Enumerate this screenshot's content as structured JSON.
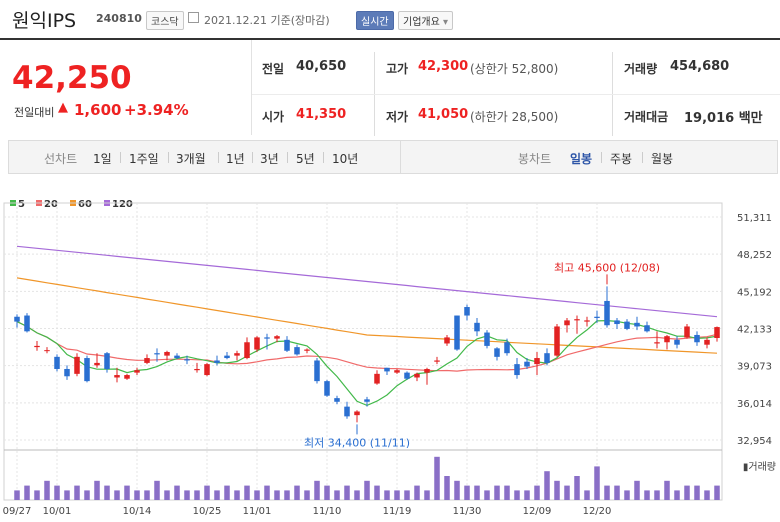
{
  "header": {
    "title": "원익IPS",
    "code": "240810",
    "market": "코스닥",
    "date": "2021.12.21 기준(장마감)",
    "realtime_button": "실시간",
    "company_info_button": "기업개요",
    "company_info_chevron": "▾"
  },
  "price": {
    "current": "42,250",
    "change_label": "전일대비",
    "change_arrow": "▲",
    "change_value": "1,600",
    "change_pct": "+3.94%"
  },
  "quote": {
    "prev_label": "전일",
    "prev_value": "40,650",
    "high_label": "고가",
    "high_value": "42,300",
    "upper_limit": "(상한가 52,800)",
    "volume_label": "거래량",
    "volume_value": "454,680",
    "open_label": "시가",
    "open_value": "41,350",
    "low_label": "저가",
    "low_value": "41,050",
    "lower_limit": "(하한가 28,500)",
    "amount_label": "거래대금",
    "amount_value": "19,016 백만"
  },
  "period_bar": {
    "line_label": "선차트",
    "line_periods": [
      "1일",
      "1주일",
      "3개월",
      "1년",
      "3년",
      "5년",
      "10년"
    ],
    "candle_label": "봉차트",
    "candle_periods": [
      "일봉",
      "주봉",
      "월봉"
    ],
    "candle_selected": "일봉"
  },
  "colors": {
    "up": "#e22222",
    "down": "#2a6fd1",
    "ma5": "#42b94a",
    "ma20": "#f06a6a",
    "ma60": "#f0962a",
    "ma120": "#a56ad8",
    "volume": "#8a6fc7"
  },
  "chart_data": {
    "type": "candlestick",
    "legend": [
      {
        "name": "5",
        "color": "#42b94a"
      },
      {
        "name": "20",
        "color": "#f06a6a"
      },
      {
        "name": "60",
        "color": "#f0962a"
      },
      {
        "name": "120",
        "color": "#a56ad8"
      }
    ],
    "y_ticks": [
      "51,311",
      "48,252",
      "45,192",
      "42,133",
      "39,073",
      "36,014",
      "32,954"
    ],
    "ylim": [
      32954,
      51311
    ],
    "x_labels": [
      "09/27",
      "10/01",
      "10/14",
      "10/25",
      "11/01",
      "11/10",
      "11/19",
      "11/30",
      "12/09",
      "12/20"
    ],
    "x_label_index": [
      0,
      4,
      12,
      19,
      24,
      31,
      38,
      45,
      52,
      58
    ],
    "annotation_high": "최고 45,600 (12/08)",
    "annotation_low": "최저 34,400 (11/11)",
    "volume_label": "거래량",
    "candles": [
      [
        43100,
        43300,
        42200,
        42700
      ],
      [
        43200,
        43400,
        41800,
        41900
      ],
      [
        40600,
        41100,
        40300,
        40700
      ],
      [
        40300,
        40600,
        40100,
        40350
      ],
      [
        39800,
        40000,
        38600,
        38800
      ],
      [
        38800,
        39100,
        37900,
        38200
      ],
      [
        38400,
        40100,
        38200,
        39800
      ],
      [
        39700,
        39900,
        37700,
        37800
      ],
      [
        39100,
        40100,
        38900,
        39300
      ],
      [
        40100,
        40200,
        38500,
        38800
      ],
      [
        38100,
        38900,
        37700,
        38300
      ],
      [
        38000,
        38400,
        37900,
        38300
      ],
      [
        38500,
        38900,
        38300,
        38700
      ],
      [
        39300,
        40000,
        39200,
        39700
      ],
      [
        40100,
        40500,
        39400,
        40000
      ],
      [
        39900,
        40300,
        39500,
        40200
      ],
      [
        39900,
        40100,
        39600,
        39700
      ],
      [
        39600,
        39900,
        39200,
        39500
      ],
      [
        38700,
        39300,
        38500,
        38800
      ],
      [
        38300,
        39300,
        38200,
        39200
      ],
      [
        39500,
        39900,
        39100,
        39300
      ],
      [
        39900,
        40200,
        39600,
        39700
      ],
      [
        39900,
        40300,
        39500,
        40100
      ],
      [
        39700,
        41400,
        39600,
        41000
      ],
      [
        40400,
        41500,
        40200,
        41400
      ],
      [
        41400,
        41700,
        40400,
        41300
      ],
      [
        41300,
        41600,
        41000,
        41500
      ],
      [
        41200,
        41500,
        40200,
        40300
      ],
      [
        40600,
        40800,
        39900,
        40000
      ],
      [
        40300,
        40500,
        40100,
        40400
      ],
      [
        39500,
        39700,
        37600,
        37800
      ],
      [
        37800,
        37900,
        36500,
        36600
      ],
      [
        36400,
        36600,
        35900,
        36100
      ],
      [
        35700,
        36100,
        34700,
        34900
      ],
      [
        35000,
        35400,
        34400,
        35300
      ],
      [
        36300,
        36500,
        35700,
        36100
      ],
      [
        37600,
        38700,
        37500,
        38400
      ],
      [
        38900,
        38900,
        38300,
        38600
      ],
      [
        38500,
        38800,
        38400,
        38700
      ],
      [
        38500,
        38600,
        37900,
        38000
      ],
      [
        38100,
        38500,
        37800,
        38400
      ],
      [
        38500,
        38900,
        37500,
        38800
      ],
      [
        39400,
        39800,
        39200,
        39500
      ],
      [
        40900,
        41600,
        40700,
        41400
      ],
      [
        43200,
        43200,
        40300,
        40400
      ],
      [
        43900,
        44100,
        42800,
        43200
      ],
      [
        42600,
        43000,
        41500,
        41900
      ],
      [
        41800,
        42000,
        40500,
        40700
      ],
      [
        40500,
        40600,
        39500,
        39800
      ],
      [
        41000,
        41300,
        39900,
        40100
      ],
      [
        39200,
        39700,
        38000,
        38300
      ],
      [
        39400,
        39700,
        38800,
        39000
      ],
      [
        39200,
        40200,
        38300,
        39700
      ],
      [
        40100,
        40500,
        39100,
        39300
      ],
      [
        39900,
        42500,
        39800,
        42300
      ],
      [
        42400,
        43000,
        41800,
        42800
      ],
      [
        42800,
        43200,
        41700,
        42900
      ],
      [
        42700,
        43100,
        42300,
        42800
      ],
      [
        43100,
        43600,
        42600,
        43000
      ],
      [
        44400,
        45600,
        42200,
        42400
      ],
      [
        42800,
        43000,
        42100,
        42500
      ],
      [
        42700,
        42900,
        42000,
        42100
      ],
      [
        42600,
        43100,
        42000,
        42300
      ],
      [
        42400,
        42700,
        41800,
        41900
      ],
      [
        40900,
        41900,
        40500,
        41000
      ],
      [
        41000,
        41600,
        40400,
        41500
      ],
      [
        41200,
        41500,
        40500,
        40800
      ],
      [
        41400,
        42500,
        41300,
        42300
      ],
      [
        41600,
        41900,
        40700,
        41000
      ],
      [
        40800,
        41400,
        40500,
        41200
      ],
      [
        41350,
        42300,
        41050,
        42250
      ]
    ],
    "volumes": [
      2,
      3,
      2,
      4,
      3,
      2,
      3,
      2,
      4,
      3,
      2,
      3,
      2,
      2,
      4,
      2,
      3,
      2,
      2,
      3,
      2,
      3,
      2,
      3,
      2,
      3,
      2,
      2,
      3,
      2,
      4,
      3,
      2,
      3,
      2,
      4,
      3,
      2,
      2,
      2,
      3,
      2,
      9,
      5,
      4,
      3,
      3,
      2,
      3,
      3,
      2,
      2,
      3,
      6,
      4,
      3,
      5,
      2,
      7,
      3,
      3,
      2,
      4,
      2,
      2,
      4,
      2,
      3,
      3,
      2,
      3
    ]
  }
}
